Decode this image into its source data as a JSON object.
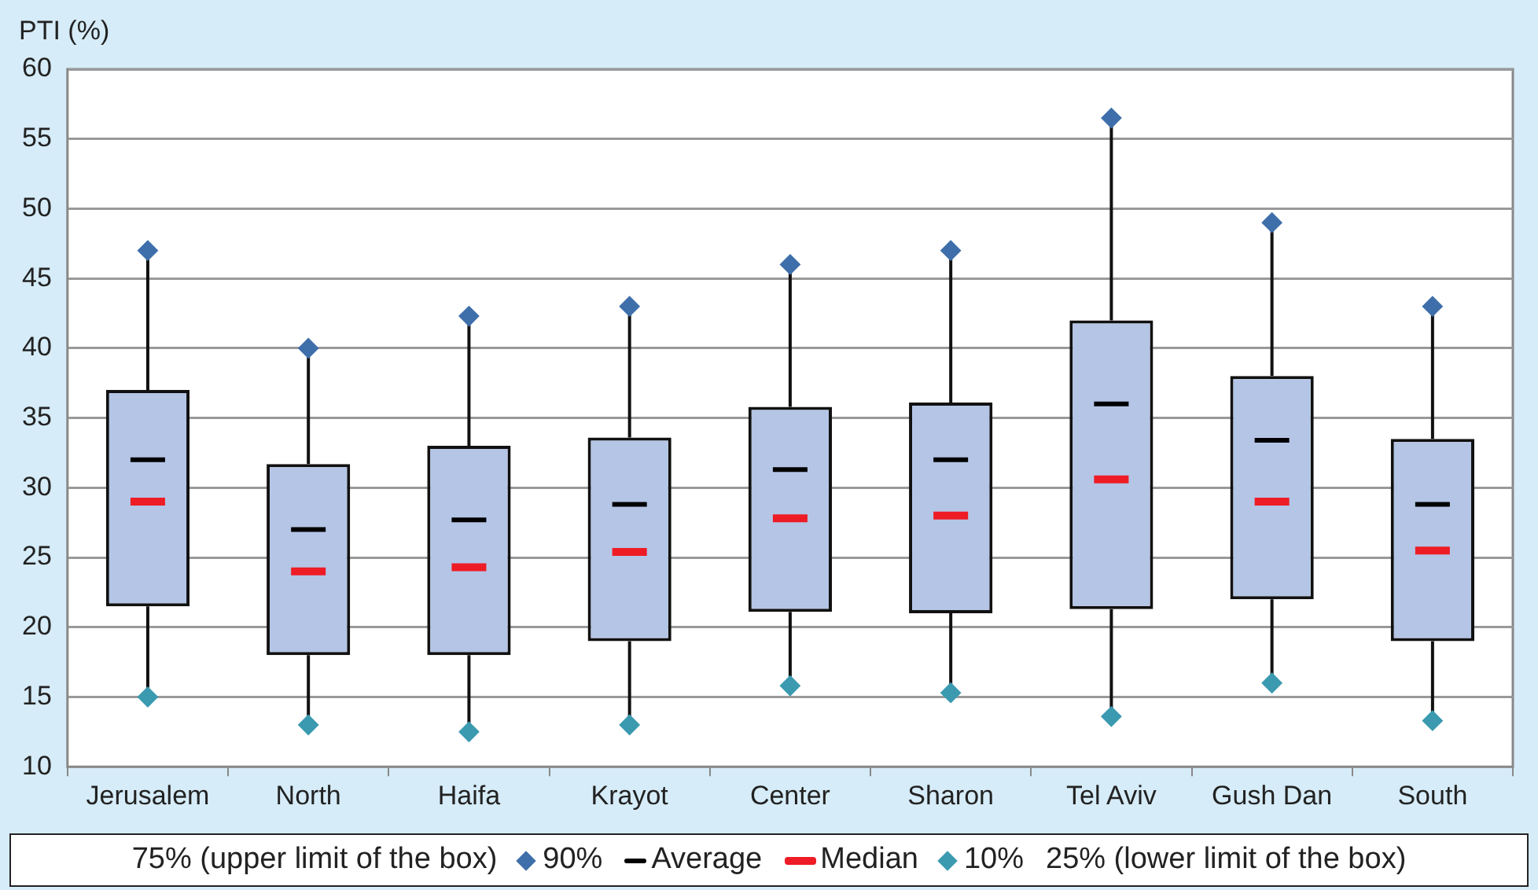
{
  "chart_data": {
    "type": "box",
    "ylabel": "PTI (%)",
    "categories": [
      "Jerusalem",
      "North",
      "Haifa",
      "Krayot",
      "Center",
      "Sharon",
      "Tel Aviv",
      "Gush Dan",
      "South"
    ],
    "ylim": [
      10,
      60
    ],
    "yticks": [
      10,
      15,
      20,
      25,
      30,
      35,
      40,
      45,
      50,
      55,
      60
    ],
    "grid": "y",
    "series": [
      {
        "color": "#111111",
        "boxes": [
          {
            "low": 15,
            "q1": 21.5,
            "median": 29,
            "q3": 37,
            "high": 47,
            "mean": 32
          },
          {
            "low": 13,
            "q1": 18,
            "median": 24,
            "q3": 31.7,
            "high": 40,
            "mean": 27
          },
          {
            "low": 12.5,
            "q1": 18,
            "median": 24.3,
            "q3": 33,
            "high": 42.3,
            "mean": 27.7
          },
          {
            "low": 13,
            "q1": 19,
            "median": 25.4,
            "q3": 33.6,
            "high": 43,
            "mean": 28.8
          },
          {
            "low": 15.8,
            "q1": 21.1,
            "median": 27.8,
            "q3": 35.8,
            "high": 46,
            "mean": 31.3
          },
          {
            "low": 15.3,
            "q1": 21,
            "median": 28,
            "q3": 36.1,
            "high": 47,
            "mean": 32
          },
          {
            "low": 13.6,
            "q1": 21.3,
            "median": 30.6,
            "q3": 42,
            "high": 56.5,
            "mean": 36
          },
          {
            "low": 16,
            "q1": 22,
            "median": 29,
            "q3": 38,
            "high": 49,
            "mean": 33.4
          },
          {
            "low": 13.3,
            "q1": 19,
            "median": 25.5,
            "q3": 33.5,
            "high": 43,
            "mean": 28.8
          }
        ]
      },
      {
        "type": "scatter",
        "marker": "diamond",
        "color": "#3f6faa",
        "values": [
          47,
          40,
          42.3,
          43,
          46,
          47,
          56.5,
          49,
          43
        ]
      },
      {
        "type": "scatter",
        "marker": "diamond",
        "color": "#3b9ab0",
        "values": [
          15,
          13,
          12.5,
          13,
          15.8,
          15.3,
          13.6,
          16,
          13.3
        ]
      }
    ],
    "annotations": [
      "75% (upper limit of the box)",
      "90%",
      "Average",
      "Median",
      "10%",
      "25% (lower limit of the box)"
    ]
  }
}
